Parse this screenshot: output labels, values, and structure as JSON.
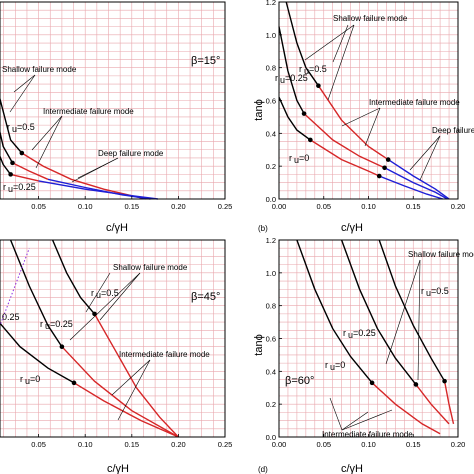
{
  "chart_data": [
    {
      "type": "line",
      "panel": "a",
      "xlabel": "c/γH",
      "ylabel": "",
      "xlim": [
        0.0,
        0.25
      ],
      "ylim": [
        0.0,
        1.2
      ],
      "x_ticks": [
        "0.05",
        "0.10",
        "0.15",
        "0.20",
        "0.25"
      ],
      "y_ticks": [],
      "beta_label": "β=15°",
      "grid": true,
      "annotations": [
        "Shallow failure mode",
        "Intermediate failure mode",
        "Deep failure mode"
      ],
      "ru_labels": [
        "r",
        "=0.5",
        "=0.25"
      ],
      "ru_sub": "u",
      "series": [
        {
          "label_ref": "ru=0.5",
          "color": "#000000",
          "points": [
            [
              0.0,
              0.95
            ],
            [
              0.008,
              0.62
            ],
            [
              0.02,
              0.36
            ],
            [
              0.032,
              0.28
            ]
          ]
        },
        {
          "label_ref": "ru=0.5",
          "color": "#d62728",
          "points": [
            [
              0.032,
              0.28
            ],
            [
              0.055,
              0.2
            ],
            [
              0.085,
              0.12
            ],
            [
              0.12,
              0.06
            ],
            [
              0.165,
              0.0
            ]
          ]
        },
        {
          "label_ref": "ru=0.25",
          "color": "#000000",
          "points": [
            [
              0.0,
              0.62
            ],
            [
              0.012,
              0.32
            ],
            [
              0.022,
              0.22
            ]
          ]
        },
        {
          "label_ref": "ru=0.25",
          "color": "#d62728",
          "points": [
            [
              0.022,
              0.22
            ],
            [
              0.04,
              0.17
            ],
            [
              0.06,
              0.12
            ]
          ]
        },
        {
          "label_ref": "ru=0.25",
          "color": "#1f1fd6",
          "points": [
            [
              0.06,
              0.12
            ],
            [
              0.1,
              0.07
            ],
            [
              0.14,
              0.025
            ],
            [
              0.17,
              0.0
            ]
          ]
        },
        {
          "label_ref": "ru=0",
          "color": "#000000",
          "points": [
            [
              0.0,
              0.38
            ],
            [
              0.012,
              0.21
            ],
            [
              0.02,
              0.15
            ]
          ]
        },
        {
          "label_ref": "ru=0",
          "color": "#d62728",
          "points": [
            [
              0.02,
              0.15
            ],
            [
              0.05,
              0.11
            ]
          ]
        },
        {
          "label_ref": "ru=0",
          "color": "#1f1fd6",
          "points": [
            [
              0.05,
              0.11
            ],
            [
              0.1,
              0.06
            ],
            [
              0.15,
              0.02
            ],
            [
              0.178,
              0.0
            ]
          ]
        }
      ],
      "markers": [
        [
          0.032,
          0.28
        ],
        [
          0.022,
          0.22
        ],
        [
          0.02,
          0.15
        ]
      ]
    },
    {
      "type": "line",
      "panel": "b",
      "xlabel": "c/γH",
      "ylabel": "tanϕ",
      "xlim": [
        0.0,
        0.2
      ],
      "ylim": [
        0.0,
        1.2
      ],
      "x_ticks": [
        "0.00",
        "0.05",
        "0.10",
        "0.15",
        "0.20"
      ],
      "y_ticks": [
        "0.0",
        "0.2",
        "0.4",
        "0.6",
        "0.8",
        "1.0",
        "1.2"
      ],
      "beta_label": "",
      "grid": true,
      "annotations": [
        "Shallow failure mode",
        "Intermediate failure mode",
        "Deep failure"
      ],
      "ru_labels": [
        "r",
        "=0.5",
        "r",
        "=0.25",
        "r",
        "=0"
      ],
      "ru_sub": "u",
      "series": [
        {
          "label_ref": "ru=0.5",
          "color": "#000000",
          "points": [
            [
              0.008,
              1.2
            ],
            [
              0.02,
              0.95
            ],
            [
              0.03,
              0.8
            ],
            [
              0.044,
              0.69
            ]
          ]
        },
        {
          "label_ref": "ru=0.5",
          "color": "#d62728",
          "points": [
            [
              0.044,
              0.69
            ],
            [
              0.07,
              0.48
            ],
            [
              0.1,
              0.32
            ],
            [
              0.122,
              0.24
            ]
          ]
        },
        {
          "label_ref": "ru=0.5",
          "color": "#1f1fd6",
          "points": [
            [
              0.122,
              0.24
            ],
            [
              0.15,
              0.14
            ],
            [
              0.175,
              0.06
            ],
            [
              0.19,
              0.0
            ]
          ]
        },
        {
          "label_ref": "ru=0.25",
          "color": "#000000",
          "points": [
            [
              0.0,
              1.05
            ],
            [
              0.01,
              0.78
            ],
            [
              0.02,
              0.6
            ],
            [
              0.028,
              0.52
            ]
          ]
        },
        {
          "label_ref": "ru=0.25",
          "color": "#d62728",
          "points": [
            [
              0.028,
              0.52
            ],
            [
              0.06,
              0.36
            ],
            [
              0.09,
              0.26
            ],
            [
              0.118,
              0.19
            ]
          ]
        },
        {
          "label_ref": "ru=0.25",
          "color": "#1f1fd6",
          "points": [
            [
              0.118,
              0.19
            ],
            [
              0.15,
              0.1
            ],
            [
              0.175,
              0.04
            ],
            [
              0.188,
              0.0
            ]
          ]
        },
        {
          "label_ref": "ru=0",
          "color": "#000000",
          "points": [
            [
              0.0,
              0.62
            ],
            [
              0.01,
              0.5
            ],
            [
              0.02,
              0.42
            ],
            [
              0.035,
              0.36
            ]
          ]
        },
        {
          "label_ref": "ru=0",
          "color": "#d62728",
          "points": [
            [
              0.035,
              0.36
            ],
            [
              0.07,
              0.24
            ],
            [
              0.1,
              0.17
            ],
            [
              0.112,
              0.14
            ]
          ]
        },
        {
          "label_ref": "ru=0",
          "color": "#1f1fd6",
          "points": [
            [
              0.112,
              0.14
            ],
            [
              0.14,
              0.08
            ],
            [
              0.165,
              0.03
            ],
            [
              0.183,
              0.0
            ]
          ]
        }
      ],
      "markers": [
        [
          0.044,
          0.69
        ],
        [
          0.122,
          0.24
        ],
        [
          0.028,
          0.52
        ],
        [
          0.118,
          0.19
        ],
        [
          0.035,
          0.36
        ],
        [
          0.112,
          0.14
        ]
      ],
      "panel_tag": "(b)"
    },
    {
      "type": "line",
      "panel": "c",
      "xlabel": "c/γH",
      "ylabel": "",
      "xlim": [
        0.0,
        0.25
      ],
      "ylim": [
        0.0,
        1.2
      ],
      "x_ticks": [
        "0.05",
        "0.10",
        "0.15",
        "0.20",
        "0.25"
      ],
      "y_ticks": [],
      "beta_label": "β=45°",
      "grid": true,
      "annotations": [
        "Shallow failure mode",
        "Intermediate failure mode"
      ],
      "ru_labels": [
        "r",
        "=0.5",
        "0.25",
        "r",
        "=0.25",
        "r",
        "=0"
      ],
      "ru_sub": "u",
      "series": [
        {
          "label_ref": "ru=0.5",
          "color": "#000000",
          "points": [
            [
              0.065,
              1.2
            ],
            [
              0.08,
              1.0
            ],
            [
              0.095,
              0.85
            ],
            [
              0.11,
              0.75
            ]
          ]
        },
        {
          "label_ref": "ru=0.5",
          "color": "#d62728",
          "points": [
            [
              0.11,
              0.75
            ],
            [
              0.13,
              0.55
            ],
            [
              0.155,
              0.3
            ],
            [
              0.18,
              0.12
            ],
            [
              0.2,
              0.0
            ]
          ]
        },
        {
          "label_ref": "ru=0.25",
          "color": "#000000",
          "points": [
            [
              0.02,
              1.2
            ],
            [
              0.04,
              0.92
            ],
            [
              0.06,
              0.68
            ],
            [
              0.075,
              0.55
            ]
          ]
        },
        {
          "label_ref": "ru=0.25",
          "color": "#d62728",
          "points": [
            [
              0.075,
              0.55
            ],
            [
              0.11,
              0.34
            ],
            [
              0.15,
              0.16
            ],
            [
              0.2,
              0.0
            ]
          ]
        },
        {
          "label_ref": "ru=0",
          "color": "#000000",
          "points": [
            [
              0.0,
              0.75
            ],
            [
              0.03,
              0.55
            ],
            [
              0.06,
              0.42
            ],
            [
              0.088,
              0.33
            ]
          ]
        },
        {
          "label_ref": "ru=0",
          "color": "#d62728",
          "points": [
            [
              0.088,
              0.33
            ],
            [
              0.12,
              0.22
            ],
            [
              0.16,
              0.1
            ],
            [
              0.2,
              0.0
            ]
          ]
        },
        {
          "label_ref": "ru=0.25 (dotted)",
          "color": "#8a2be2",
          "points": [
            [
              0.0,
              0.55
            ],
            [
              0.01,
              0.7
            ],
            [
              0.02,
              0.85
            ],
            [
              0.03,
              1.0
            ],
            [
              0.04,
              1.15
            ]
          ]
        }
      ],
      "markers": [
        [
          0.11,
          0.75
        ],
        [
          0.075,
          0.55
        ],
        [
          0.088,
          0.33
        ]
      ]
    },
    {
      "type": "line",
      "panel": "d",
      "xlabel": "c/γH",
      "ylabel": "tanϕ",
      "xlim": [
        0.0,
        0.2
      ],
      "ylim": [
        0.0,
        1.2
      ],
      "x_ticks": [
        "0.00",
        "0.05",
        "0.10",
        "0.15",
        "0.20"
      ],
      "y_ticks": [
        "0.0",
        "0.2",
        "0.4",
        "0.6",
        "0.8",
        "1.0",
        "1.2"
      ],
      "beta_label": "β=60°",
      "grid": true,
      "annotations": [
        "Shallow failure mode",
        "Intermediate failure mode"
      ],
      "ru_labels": [
        "r",
        "=0.5",
        "r",
        "=0.25",
        "r",
        "=0"
      ],
      "ru_sub": "u",
      "series": [
        {
          "label_ref": "ru=0.5",
          "color": "#000000",
          "points": [
            [
              0.112,
              1.2
            ],
            [
              0.13,
              0.92
            ],
            [
              0.15,
              0.68
            ],
            [
              0.17,
              0.48
            ],
            [
              0.185,
              0.34
            ]
          ]
        },
        {
          "label_ref": "ru=0.5",
          "color": "#d62728",
          "points": [
            [
              0.185,
              0.34
            ],
            [
              0.19,
              0.2
            ],
            [
              0.195,
              0.08
            ]
          ]
        },
        {
          "label_ref": "ru=0.25",
          "color": "#000000",
          "points": [
            [
              0.07,
              1.2
            ],
            [
              0.09,
              0.9
            ],
            [
              0.11,
              0.66
            ],
            [
              0.13,
              0.48
            ],
            [
              0.153,
              0.32
            ]
          ]
        },
        {
          "label_ref": "ru=0.25",
          "color": "#d62728",
          "points": [
            [
              0.153,
              0.32
            ],
            [
              0.17,
              0.2
            ],
            [
              0.19,
              0.08
            ]
          ]
        },
        {
          "label_ref": "ru=0",
          "color": "#000000",
          "points": [
            [
              0.02,
              1.2
            ],
            [
              0.04,
              0.9
            ],
            [
              0.06,
              0.66
            ],
            [
              0.08,
              0.49
            ],
            [
              0.104,
              0.33
            ]
          ]
        },
        {
          "label_ref": "ru=0",
          "color": "#d62728",
          "points": [
            [
              0.104,
              0.33
            ],
            [
              0.13,
              0.2
            ],
            [
              0.16,
              0.08
            ],
            [
              0.18,
              0.02
            ]
          ]
        }
      ],
      "markers": [
        [
          0.185,
          0.34
        ],
        [
          0.153,
          0.32
        ],
        [
          0.104,
          0.33
        ]
      ],
      "panel_tag": "(d)"
    }
  ]
}
